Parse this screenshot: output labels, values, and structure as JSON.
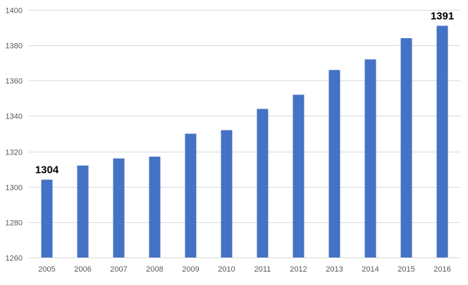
{
  "chart_data": {
    "type": "bar",
    "title": "",
    "xlabel": "",
    "ylabel": "",
    "categories": [
      "2005",
      "2006",
      "2007",
      "2008",
      "2009",
      "2010",
      "2011",
      "2012",
      "2013",
      "2014",
      "2015",
      "2016"
    ],
    "values": [
      1304,
      1312,
      1316,
      1317,
      1330,
      1332,
      1344,
      1352,
      1366,
      1372,
      1384,
      1391
    ],
    "ylim": [
      1260,
      1400
    ],
    "yticks": [
      1260,
      1280,
      1300,
      1320,
      1340,
      1360,
      1380,
      1400
    ],
    "data_labels": [
      {
        "category": "2005",
        "text": "1304"
      },
      {
        "category": "2016",
        "text": "1391"
      }
    ],
    "grid": true,
    "legend": "none",
    "bar_color": "#4472c4"
  }
}
